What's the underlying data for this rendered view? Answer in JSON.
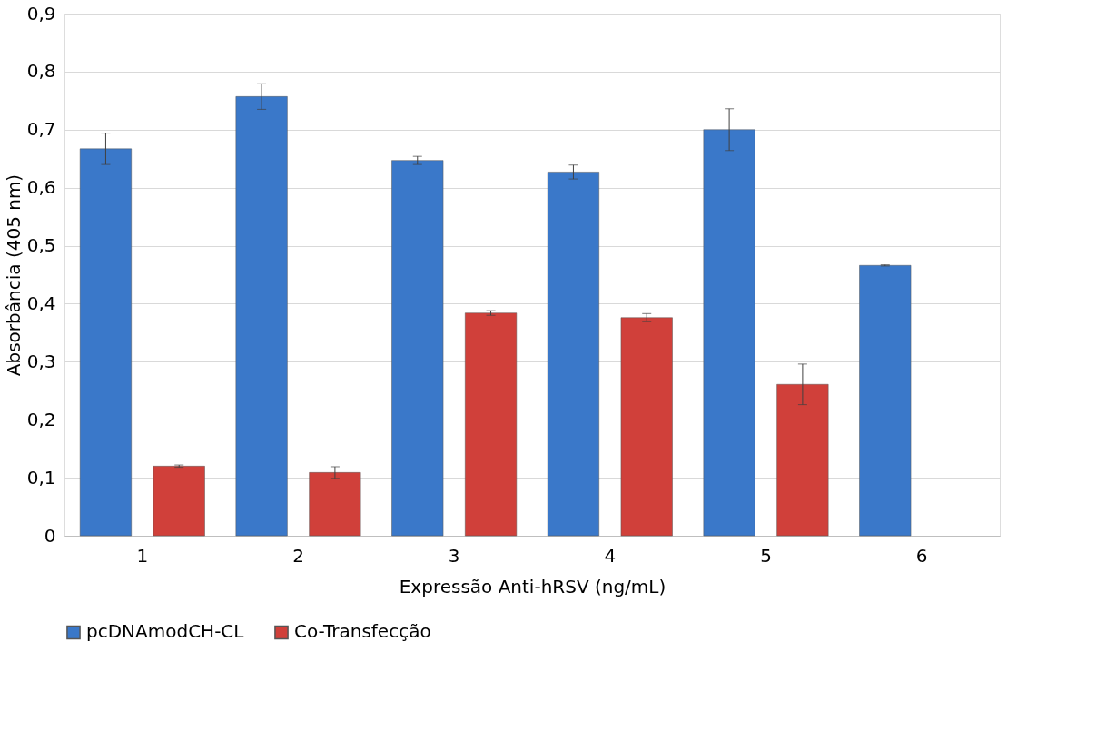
{
  "chart_data": {
    "type": "bar",
    "xlabel": "Expressão Anti-hRSV (ng/mL)",
    "ylabel": "Absorbância (405 nm)",
    "categories": [
      "1",
      "2",
      "3",
      "4",
      "5",
      "6"
    ],
    "series": [
      {
        "name": "pcDNAmodCH-CL",
        "color": "#3a78c9",
        "values": [
          0.667,
          0.757,
          0.647,
          0.627,
          0.7,
          0.466
        ],
        "errors": [
          0.027,
          0.022,
          0.007,
          0.012,
          0.036,
          0.001
        ]
      },
      {
        "name": "Co-Transfecção",
        "color": "#d0403a",
        "values": [
          0.12,
          0.109,
          0.384,
          0.376,
          0.261,
          null
        ],
        "errors": [
          0.002,
          0.01,
          0.004,
          0.007,
          0.035,
          null
        ]
      }
    ],
    "ylim": [
      0,
      0.9
    ],
    "yticks": [
      0,
      {
        "value": 0.1,
        "label": "0,1"
      },
      {
        "value": 0.2,
        "label": "0,2"
      },
      {
        "value": 0.3,
        "label": "0,3"
      },
      {
        "value": 0.4,
        "label": "0,4"
      },
      {
        "value": 0.5,
        "label": "0,5"
      },
      {
        "value": 0.6,
        "label": "0,6"
      },
      {
        "value": 0.7,
        "label": "0,7"
      },
      {
        "value": 0.8,
        "label": "0,8"
      },
      {
        "value": 0.9,
        "label": "0,9"
      }
    ],
    "grid": "y",
    "legend": "bottom"
  }
}
